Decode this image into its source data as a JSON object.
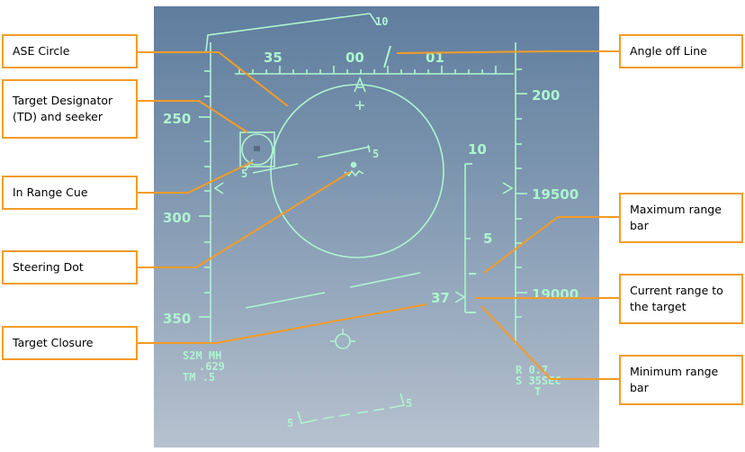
{
  "callouts": {
    "ase_circle": "ASE Circle",
    "target_designator": "Target Designator (TD) and seeker",
    "in_range_cue": "In Range Cue",
    "steering_dot": "Steering Dot",
    "target_closure": "Target Closure",
    "angle_off_line": "Angle off Line",
    "max_range_bar": "Maximum range bar",
    "current_range": "Current range to the target",
    "min_range_bar": "Minimum range bar"
  },
  "hud": {
    "heading_ticks": [
      "35",
      "00",
      "01"
    ],
    "bank_mark": "10",
    "airspeed_ticks": [
      "250",
      "300",
      "350"
    ],
    "altitude_ticks": [
      "200",
      "19500",
      "19000"
    ],
    "range_scale_top": "10",
    "range_scale_mid": "5",
    "closure_value": "37",
    "left_readout": [
      "S2M MH",
      ".629",
      "TM .5"
    ],
    "right_readout": [
      "R 0.7",
      "S 35SEC",
      "T"
    ],
    "pitch_marks": [
      "5",
      "5",
      "5",
      "5"
    ]
  },
  "colors": {
    "hud_symbology": "#aef5cf",
    "callout_border": "#f39c26",
    "leader_line": "#f39c26"
  }
}
